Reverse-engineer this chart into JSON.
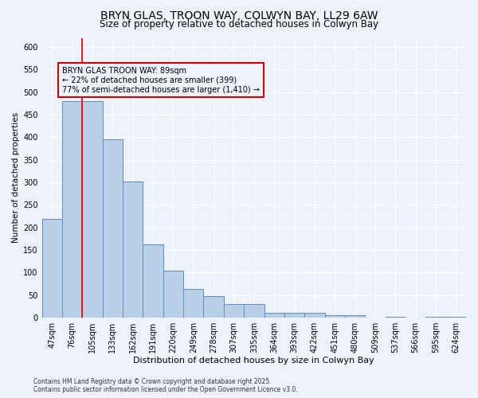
{
  "title": "BRYN GLAS, TROON WAY, COLWYN BAY, LL29 6AW",
  "subtitle": "Size of property relative to detached houses in Colwyn Bay",
  "xlabel": "Distribution of detached houses by size in Colwyn Bay",
  "ylabel": "Number of detached properties",
  "categories": [
    "47sqm",
    "76sqm",
    "105sqm",
    "133sqm",
    "162sqm",
    "191sqm",
    "220sqm",
    "249sqm",
    "278sqm",
    "307sqm",
    "335sqm",
    "364sqm",
    "393sqm",
    "422sqm",
    "451sqm",
    "480sqm",
    "509sqm",
    "537sqm",
    "566sqm",
    "595sqm",
    "624sqm"
  ],
  "values": [
    218,
    480,
    480,
    395,
    302,
    163,
    104,
    64,
    47,
    30,
    30,
    10,
    10,
    10,
    5,
    5,
    0,
    2,
    0,
    2,
    2
  ],
  "bar_color": "#b8cfe8",
  "bar_edge_color": "#5b8cc8",
  "property_line_x": 1.5,
  "annotation_title": "BRYN GLAS TROON WAY: 89sqm",
  "annotation_line1": "← 22% of detached houses are smaller (399)",
  "annotation_line2": "77% of semi-detached houses are larger (1,410) →",
  "annotation_box_color": "#cc0000",
  "ylim": [
    0,
    620
  ],
  "yticks": [
    0,
    50,
    100,
    150,
    200,
    250,
    300,
    350,
    400,
    450,
    500,
    550,
    600
  ],
  "footnote1": "Contains HM Land Registry data © Crown copyright and database right 2025.",
  "footnote2": "Contains public sector information licensed under the Open Government Licence v3.0.",
  "background_color": "#eef2fb",
  "grid_color": "#ffffff",
  "title_fontsize": 10,
  "subtitle_fontsize": 8.5,
  "xlabel_fontsize": 8,
  "ylabel_fontsize": 7.5,
  "tick_fontsize": 7,
  "annotation_fontsize": 7,
  "footnote_fontsize": 5.5
}
